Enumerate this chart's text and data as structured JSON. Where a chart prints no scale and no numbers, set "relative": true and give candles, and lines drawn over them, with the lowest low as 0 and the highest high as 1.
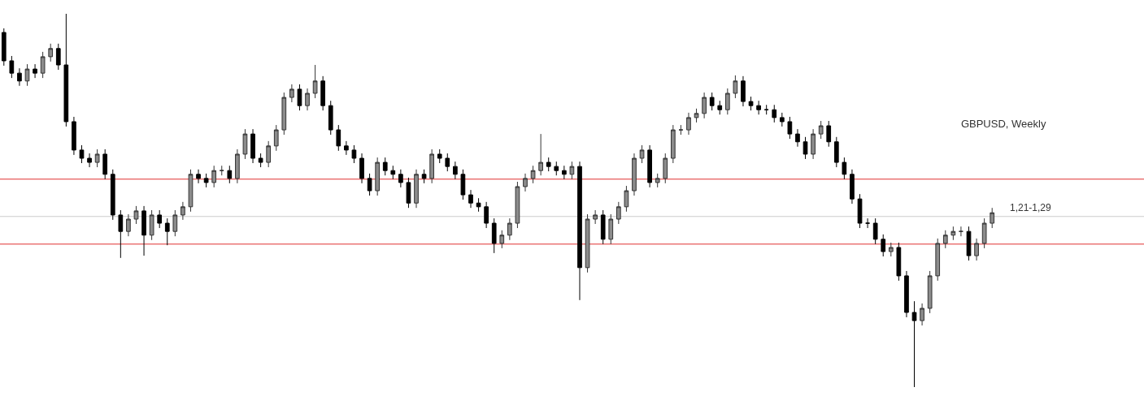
{
  "chart_data": {
    "type": "candlestick",
    "title": "GBPUSD, Weekly",
    "relative": true,
    "annotations": [
      "1,21-1,29"
    ],
    "categories": [
      null,
      null,
      null,
      null,
      null,
      null,
      null,
      null,
      null,
      null,
      null,
      null,
      null,
      null,
      null,
      null,
      null,
      null,
      null,
      null,
      null,
      null,
      null,
      null,
      null,
      null,
      null,
      null,
      null,
      null,
      null,
      null,
      null,
      null,
      null,
      null,
      null,
      null,
      null,
      null,
      null,
      null,
      null,
      null,
      null,
      null,
      null,
      null,
      null,
      null,
      null,
      null,
      null,
      null,
      null,
      null,
      null,
      null,
      null,
      null,
      null,
      null,
      null,
      null,
      null,
      null,
      null,
      null,
      null,
      null,
      null,
      null,
      null,
      null,
      null,
      null,
      null,
      null,
      null,
      null,
      null,
      null,
      null,
      null,
      null,
      null,
      null,
      null,
      null,
      null,
      null,
      null,
      null,
      null,
      null,
      null,
      null,
      null,
      null,
      null,
      null,
      null,
      null,
      null,
      null,
      null,
      null,
      null,
      null,
      null,
      null,
      null,
      null,
      null,
      null,
      null,
      null,
      null,
      null,
      null,
      null,
      null,
      null,
      null,
      null,
      null,
      null,
      null
    ],
    "ohlc": [
      [
        0.95,
        0.961,
        0.861,
        0.874
      ],
      [
        0.874,
        0.887,
        0.828,
        0.841
      ],
      [
        0.841,
        0.854,
        0.807,
        0.82
      ],
      [
        0.82,
        0.865,
        0.807,
        0.852
      ],
      [
        0.852,
        0.865,
        0.828,
        0.841
      ],
      [
        0.841,
        0.898,
        0.828,
        0.885
      ],
      [
        0.885,
        0.92,
        0.872,
        0.907
      ],
      [
        0.907,
        0.92,
        0.85,
        0.863
      ],
      [
        0.863,
        1.0,
        0.698,
        0.711
      ],
      [
        0.711,
        0.724,
        0.622,
        0.635
      ],
      [
        0.635,
        0.648,
        0.6,
        0.613
      ],
      [
        0.613,
        0.626,
        0.589,
        0.602
      ],
      [
        0.602,
        0.637,
        0.589,
        0.624
      ],
      [
        0.624,
        0.637,
        0.557,
        0.57
      ],
      [
        0.57,
        0.583,
        0.448,
        0.461
      ],
      [
        0.461,
        0.474,
        0.346,
        0.417
      ],
      [
        0.417,
        0.463,
        0.404,
        0.45
      ],
      [
        0.45,
        0.485,
        0.437,
        0.472
      ],
      [
        0.472,
        0.485,
        0.352,
        0.407
      ],
      [
        0.407,
        0.474,
        0.394,
        0.461
      ],
      [
        0.461,
        0.474,
        0.426,
        0.439
      ],
      [
        0.439,
        0.452,
        0.38,
        0.417
      ],
      [
        0.417,
        0.474,
        0.404,
        0.461
      ],
      [
        0.461,
        0.496,
        0.448,
        0.483
      ],
      [
        0.483,
        0.583,
        0.47,
        0.57
      ],
      [
        0.57,
        0.583,
        0.546,
        0.559
      ],
      [
        0.559,
        0.572,
        0.535,
        0.548
      ],
      [
        0.548,
        0.593,
        0.535,
        0.58
      ],
      [
        0.58,
        0.593,
        0.567,
        0.58
      ],
      [
        0.58,
        0.593,
        0.546,
        0.559
      ],
      [
        0.559,
        0.637,
        0.546,
        0.624
      ],
      [
        0.624,
        0.691,
        0.611,
        0.678
      ],
      [
        0.678,
        0.691,
        0.6,
        0.613
      ],
      [
        0.613,
        0.626,
        0.589,
        0.602
      ],
      [
        0.602,
        0.659,
        0.589,
        0.646
      ],
      [
        0.646,
        0.702,
        0.633,
        0.689
      ],
      [
        0.689,
        0.789,
        0.676,
        0.776
      ],
      [
        0.776,
        0.811,
        0.763,
        0.798
      ],
      [
        0.798,
        0.811,
        0.741,
        0.754
      ],
      [
        0.754,
        0.8,
        0.741,
        0.787
      ],
      [
        0.787,
        0.863,
        0.774,
        0.82
      ],
      [
        0.82,
        0.833,
        0.741,
        0.754
      ],
      [
        0.754,
        0.767,
        0.676,
        0.689
      ],
      [
        0.689,
        0.702,
        0.633,
        0.646
      ],
      [
        0.646,
        0.659,
        0.622,
        0.635
      ],
      [
        0.635,
        0.648,
        0.6,
        0.613
      ],
      [
        0.613,
        0.626,
        0.546,
        0.559
      ],
      [
        0.559,
        0.572,
        0.513,
        0.526
      ],
      [
        0.526,
        0.615,
        0.513,
        0.602
      ],
      [
        0.602,
        0.615,
        0.567,
        0.58
      ],
      [
        0.58,
        0.593,
        0.557,
        0.57
      ],
      [
        0.57,
        0.583,
        0.535,
        0.548
      ],
      [
        0.548,
        0.561,
        0.48,
        0.493
      ],
      [
        0.493,
        0.583,
        0.48,
        0.57
      ],
      [
        0.57,
        0.583,
        0.546,
        0.559
      ],
      [
        0.559,
        0.637,
        0.546,
        0.624
      ],
      [
        0.624,
        0.637,
        0.6,
        0.613
      ],
      [
        0.613,
        0.626,
        0.578,
        0.591
      ],
      [
        0.591,
        0.604,
        0.557,
        0.57
      ],
      [
        0.57,
        0.583,
        0.502,
        0.515
      ],
      [
        0.515,
        0.528,
        0.48,
        0.493
      ],
      [
        0.493,
        0.506,
        0.47,
        0.483
      ],
      [
        0.483,
        0.496,
        0.426,
        0.439
      ],
      [
        0.439,
        0.452,
        0.359,
        0.385
      ],
      [
        0.385,
        0.42,
        0.372,
        0.407
      ],
      [
        0.407,
        0.452,
        0.394,
        0.439
      ],
      [
        0.439,
        0.55,
        0.426,
        0.537
      ],
      [
        0.537,
        0.572,
        0.524,
        0.559
      ],
      [
        0.559,
        0.593,
        0.546,
        0.58
      ],
      [
        0.58,
        0.678,
        0.567,
        0.602
      ],
      [
        0.602,
        0.615,
        0.578,
        0.591
      ],
      [
        0.591,
        0.604,
        0.567,
        0.58
      ],
      [
        0.58,
        0.593,
        0.557,
        0.57
      ],
      [
        0.57,
        0.604,
        0.557,
        0.591
      ],
      [
        0.591,
        0.604,
        0.233,
        0.32
      ],
      [
        0.32,
        0.463,
        0.307,
        0.45
      ],
      [
        0.45,
        0.474,
        0.437,
        0.461
      ],
      [
        0.461,
        0.474,
        0.383,
        0.396
      ],
      [
        0.396,
        0.463,
        0.383,
        0.45
      ],
      [
        0.45,
        0.496,
        0.437,
        0.483
      ],
      [
        0.483,
        0.539,
        0.47,
        0.526
      ],
      [
        0.526,
        0.626,
        0.513,
        0.613
      ],
      [
        0.613,
        0.648,
        0.6,
        0.635
      ],
      [
        0.635,
        0.648,
        0.535,
        0.548
      ],
      [
        0.548,
        0.572,
        0.535,
        0.559
      ],
      [
        0.559,
        0.626,
        0.546,
        0.613
      ],
      [
        0.613,
        0.702,
        0.6,
        0.689
      ],
      [
        0.689,
        0.702,
        0.676,
        0.689
      ],
      [
        0.689,
        0.735,
        0.676,
        0.722
      ],
      [
        0.722,
        0.746,
        0.709,
        0.733
      ],
      [
        0.733,
        0.789,
        0.72,
        0.776
      ],
      [
        0.776,
        0.789,
        0.741,
        0.754
      ],
      [
        0.754,
        0.767,
        0.73,
        0.743
      ],
      [
        0.743,
        0.8,
        0.73,
        0.787
      ],
      [
        0.787,
        0.835,
        0.774,
        0.82
      ],
      [
        0.82,
        0.833,
        0.752,
        0.765
      ],
      [
        0.765,
        0.778,
        0.741,
        0.754
      ],
      [
        0.754,
        0.767,
        0.73,
        0.743
      ],
      [
        0.743,
        0.756,
        0.73,
        0.743
      ],
      [
        0.743,
        0.756,
        0.709,
        0.722
      ],
      [
        0.722,
        0.735,
        0.698,
        0.711
      ],
      [
        0.711,
        0.724,
        0.665,
        0.678
      ],
      [
        0.678,
        0.691,
        0.644,
        0.657
      ],
      [
        0.657,
        0.67,
        0.611,
        0.624
      ],
      [
        0.624,
        0.691,
        0.611,
        0.678
      ],
      [
        0.678,
        0.713,
        0.665,
        0.7
      ],
      [
        0.7,
        0.713,
        0.644,
        0.657
      ],
      [
        0.657,
        0.67,
        0.589,
        0.602
      ],
      [
        0.602,
        0.615,
        0.557,
        0.57
      ],
      [
        0.57,
        0.583,
        0.491,
        0.504
      ],
      [
        0.504,
        0.517,
        0.426,
        0.439
      ],
      [
        0.439,
        0.452,
        0.426,
        0.439
      ],
      [
        0.439,
        0.452,
        0.383,
        0.396
      ],
      [
        0.396,
        0.409,
        0.35,
        0.363
      ],
      [
        0.363,
        0.387,
        0.35,
        0.374
      ],
      [
        0.374,
        0.387,
        0.285,
        0.298
      ],
      [
        0.298,
        0.311,
        0.187,
        0.2
      ],
      [
        0.2,
        0.23,
        0.0,
        0.178
      ],
      [
        0.178,
        0.224,
        0.165,
        0.211
      ],
      [
        0.211,
        0.311,
        0.198,
        0.298
      ],
      [
        0.298,
        0.398,
        0.285,
        0.385
      ],
      [
        0.385,
        0.42,
        0.372,
        0.407
      ],
      [
        0.407,
        0.43,
        0.394,
        0.417
      ],
      [
        0.417,
        0.43,
        0.404,
        0.417
      ],
      [
        0.417,
        0.43,
        0.339,
        0.352
      ],
      [
        0.352,
        0.398,
        0.339,
        0.385
      ],
      [
        0.385,
        0.452,
        0.372,
        0.439
      ],
      [
        0.439,
        0.48,
        0.426,
        0.467
      ]
    ],
    "ref_lines": [
      {
        "axis": "y",
        "value": 0.557,
        "color": "#e03030"
      },
      {
        "axis": "y",
        "value": 0.457,
        "color": "#cccccc"
      },
      {
        "axis": "y",
        "value": 0.383,
        "color": "#e03030"
      }
    ]
  }
}
